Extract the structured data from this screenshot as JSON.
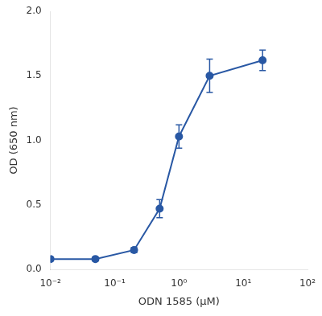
{
  "chart_data": {
    "type": "line",
    "x": [
      0.01,
      0.05,
      0.2,
      0.5,
      1.0,
      3.0,
      20.0
    ],
    "values": [
      0.08,
      0.08,
      0.15,
      0.47,
      1.03,
      1.5,
      1.62
    ],
    "yerr": [
      0.015,
      0.015,
      0.02,
      0.07,
      0.09,
      0.13,
      0.08
    ],
    "color": "#2958a4",
    "marker": "circle",
    "line_style": "solid",
    "xlabel": "ODN 1585 (μM)",
    "ylabel": "OD (650 nm)",
    "log": "x",
    "xlim": [
      0.01,
      100
    ],
    "xticks": [
      {
        "value": 0.01,
        "label": "10⁻²"
      },
      {
        "value": 0.1,
        "label": "10⁻¹"
      },
      {
        "value": 1,
        "label": "10⁰"
      },
      {
        "value": 10,
        "label": "10¹"
      },
      {
        "value": 100,
        "label": "10²"
      }
    ],
    "ylim": [
      0.0,
      2.0
    ],
    "yticks": [
      {
        "value": 0.0,
        "label": "0.0"
      },
      {
        "value": 0.5,
        "label": "0.5"
      },
      {
        "value": 1.0,
        "label": "1.0"
      },
      {
        "value": 1.5,
        "label": "1.5"
      },
      {
        "value": 2.0,
        "label": "2.0"
      }
    ],
    "grid": false
  }
}
